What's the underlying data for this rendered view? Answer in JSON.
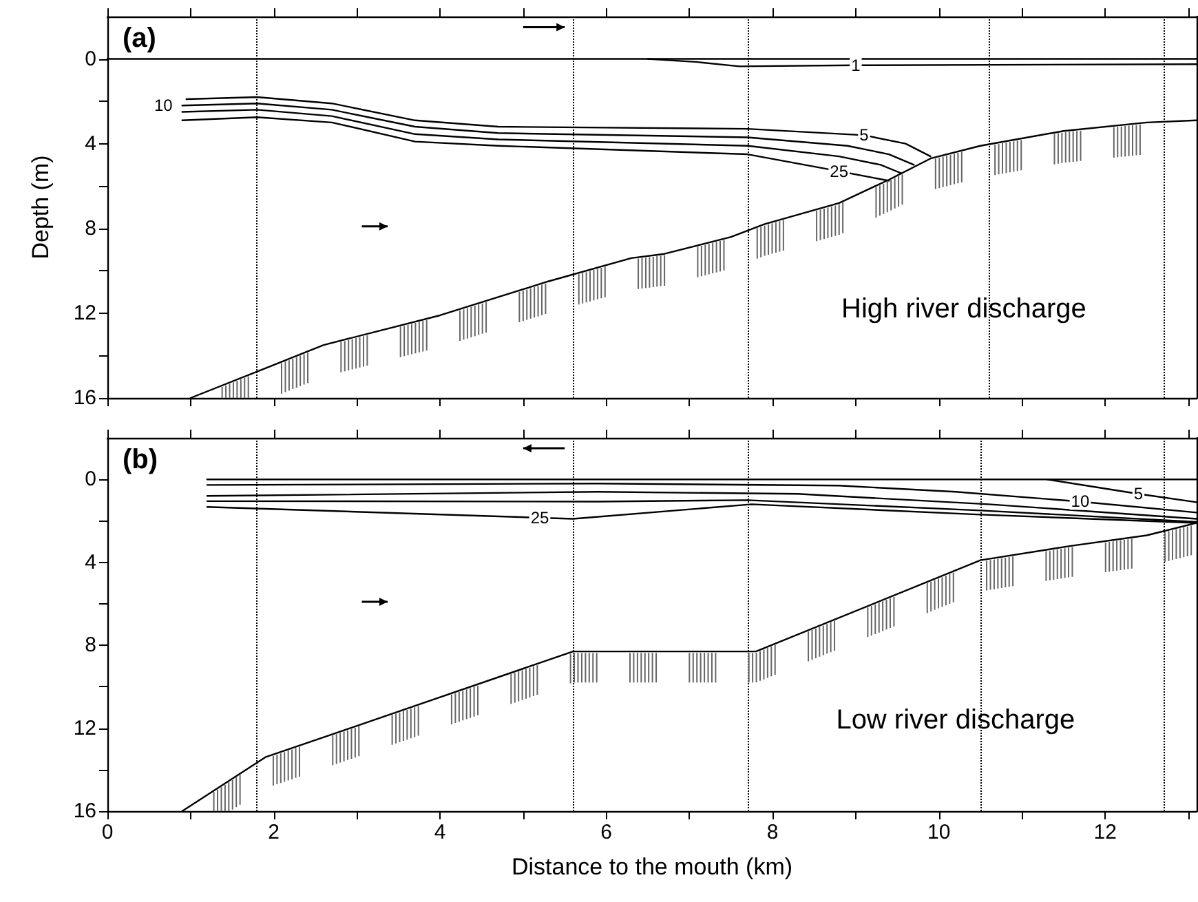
{
  "chart_data": [
    {
      "type": "line",
      "title": "(a)",
      "ylabel": "Depth (m)",
      "annotations": [
        "High river discharge"
      ],
      "xlim": [
        0,
        13.1
      ],
      "ylim": [
        16,
        -2
      ],
      "xticks": [
        0,
        {
          "value": 1,
          "label": null
        },
        2,
        {
          "value": 3,
          "label": null
        },
        4,
        {
          "value": 5,
          "label": null
        },
        6,
        {
          "value": 7,
          "label": null
        },
        8,
        {
          "value": 9,
          "label": null
        },
        10,
        {
          "value": 11,
          "label": null
        },
        12,
        {
          "value": 13,
          "label": null
        }
      ],
      "yticks": [
        0,
        {
          "value": 2,
          "label": null
        },
        4,
        {
          "value": 6,
          "label": null
        },
        8,
        {
          "value": 10,
          "label": null
        },
        12,
        {
          "value": 14,
          "label": null
        },
        16
      ],
      "tick_labels": "y",
      "marker": "none",
      "line_style": "solid",
      "ref_lines": [
        {
          "axis": "x",
          "value": 1.8,
          "line_style": "dotted",
          "color": "#000000"
        },
        {
          "axis": "x",
          "value": 5.6,
          "line_style": "dotted",
          "color": "#000000"
        },
        {
          "axis": "x",
          "value": 7.7,
          "line_style": "dotted",
          "color": "#000000"
        },
        {
          "axis": "x",
          "value": 10.6,
          "line_style": "dotted",
          "color": "#000000"
        },
        {
          "axis": "x",
          "value": 12.7,
          "line_style": "dotted",
          "color": "#000000"
        }
      ],
      "series": [
        {
          "color": "#000000",
          "x": [
            1.0,
            1.9,
            2.6,
            4.0,
            5.3,
            6.3,
            6.7,
            7.5,
            7.9,
            8.8,
            9.4,
            9.9,
            10.5,
            11.5,
            12.5,
            13.1
          ],
          "values": [
            16,
            14.6,
            13.5,
            12.1,
            10.5,
            9.4,
            9.2,
            8.4,
            7.8,
            6.8,
            5.7,
            4.7,
            4.1,
            3.4,
            3.0,
            2.9
          ]
        },
        {
          "color": "#000000",
          "x": [
            0,
            13.1
          ],
          "values": [
            0,
            0
          ]
        },
        {
          "name": "1",
          "color": "#000000",
          "x": [
            6.5,
            7.1,
            7.6,
            9.0,
            13.1
          ],
          "values": [
            0,
            0.15,
            0.35,
            0.3,
            0.25
          ]
        },
        {
          "name": "5",
          "color": "#000000",
          "x": [
            0.95,
            1.8,
            2.7,
            3.7,
            4.7,
            7.7,
            9.1,
            9.6,
            9.9
          ],
          "values": [
            1.9,
            1.8,
            2.1,
            2.9,
            3.2,
            3.3,
            3.6,
            4.0,
            4.6
          ]
        },
        {
          "name": "10",
          "color": "#000000",
          "x": [
            0.9,
            1.8,
            2.7,
            3.7,
            4.7,
            7.7,
            8.9,
            9.4,
            9.7
          ],
          "values": [
            2.2,
            2.1,
            2.4,
            3.2,
            3.5,
            3.7,
            4.1,
            4.5,
            5.0
          ]
        },
        {
          "color": "#000000",
          "x": [
            0.9,
            1.8,
            2.7,
            3.7,
            4.7,
            7.7,
            8.8,
            9.3,
            9.55
          ],
          "values": [
            2.5,
            2.4,
            2.7,
            3.55,
            3.8,
            4.1,
            4.6,
            5.0,
            5.4
          ]
        },
        {
          "name": "25",
          "color": "#000000",
          "x": [
            0.9,
            1.8,
            2.7,
            3.7,
            4.7,
            7.7,
            8.8,
            9.2,
            9.4
          ],
          "values": [
            2.9,
            2.75,
            3.0,
            3.9,
            4.1,
            4.5,
            5.3,
            5.6,
            5.75
          ]
        }
      ]
    },
    {
      "type": "line",
      "title": "(b)",
      "xlabel": "Distance to the mouth (km)",
      "annotations": [
        "Low river discharge"
      ],
      "xlim": [
        0,
        13.1
      ],
      "ylim": [
        16,
        -2
      ],
      "xticks": [
        0,
        {
          "value": 1,
          "label": null
        },
        2,
        {
          "value": 3,
          "label": null
        },
        4,
        {
          "value": 5,
          "label": null
        },
        6,
        {
          "value": 7,
          "label": null
        },
        8,
        {
          "value": 9,
          "label": null
        },
        10,
        {
          "value": 11,
          "label": null
        },
        12,
        {
          "value": 13,
          "label": null
        }
      ],
      "yticks": [
        0,
        {
          "value": 2,
          "label": null
        },
        4,
        {
          "value": 6,
          "label": null
        },
        8,
        {
          "value": 10,
          "label": null
        },
        12,
        {
          "value": 14,
          "label": null
        },
        16
      ],
      "marker": "none",
      "line_style": "solid",
      "ref_lines": [
        {
          "axis": "x",
          "value": 1.8,
          "line_style": "dotted",
          "color": "#000000"
        },
        {
          "axis": "x",
          "value": 5.6,
          "line_style": "dotted",
          "color": "#000000"
        },
        {
          "axis": "x",
          "value": 7.7,
          "line_style": "dotted",
          "color": "#000000"
        },
        {
          "axis": "x",
          "value": 10.5,
          "line_style": "dotted",
          "color": "#000000"
        },
        {
          "axis": "x",
          "value": 12.7,
          "line_style": "dotted",
          "color": "#000000"
        }
      ],
      "series": [
        {
          "color": "#000000",
          "x": [
            0.9,
            1.9,
            2.7,
            5.6,
            7.8,
            10.5,
            11.6,
            12.5,
            13.1
          ],
          "values": [
            16,
            13.4,
            12.3,
            8.3,
            8.3,
            3.9,
            3.2,
            2.7,
            2.1
          ]
        },
        {
          "color": "#000000",
          "x": [
            1.2,
            13.1
          ],
          "values": [
            0,
            0
          ]
        },
        {
          "name": "5",
          "color": "#000000",
          "x": [
            11.3,
            12.4,
            13.1
          ],
          "values": [
            0,
            0.7,
            1.1
          ]
        },
        {
          "name": "10",
          "color": "#000000",
          "x": [
            1.2,
            5.9,
            8.8,
            10.2,
            11.7,
            13.1
          ],
          "values": [
            0.27,
            0.2,
            0.3,
            0.6,
            1.07,
            1.6
          ]
        },
        {
          "color": "#000000",
          "x": [
            1.2,
            5.9,
            8.3,
            10.6,
            13.1
          ],
          "values": [
            0.8,
            0.6,
            0.7,
            1.2,
            1.9
          ]
        },
        {
          "color": "#000000",
          "x": [
            1.2,
            5.9,
            7.7,
            10.5,
            13.1
          ],
          "values": [
            1.05,
            1.07,
            1.0,
            1.5,
            2.05
          ]
        },
        {
          "name": "25",
          "color": "#000000",
          "x": [
            1.2,
            5.2,
            5.6,
            7.75,
            10.5,
            13.1
          ],
          "values": [
            1.33,
            1.85,
            1.9,
            1.2,
            1.7,
            2.1
          ]
        }
      ]
    }
  ]
}
